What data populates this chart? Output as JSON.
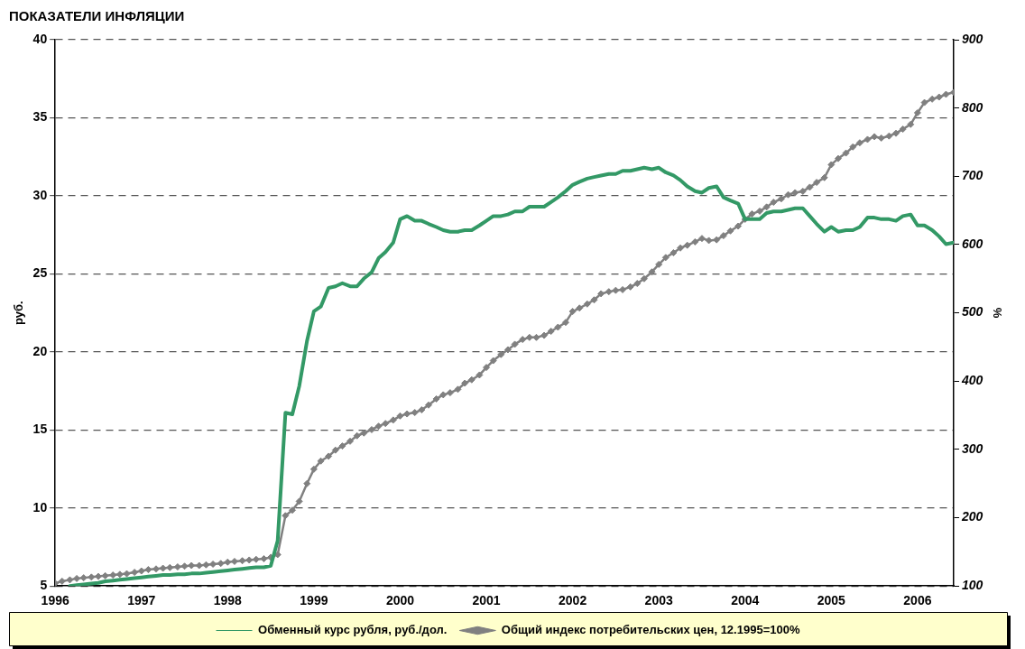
{
  "chart_data": {
    "type": "line",
    "title": "ПОКАЗАТЕЛИ ИНФЛЯЦИИ",
    "ylabel": "руб.",
    "y2label": "%",
    "x": [
      1996.0,
      1996.08,
      1996.17,
      1996.25,
      1996.33,
      1996.42,
      1996.5,
      1996.58,
      1996.67,
      1996.75,
      1996.83,
      1996.92,
      1997.0,
      1997.08,
      1997.17,
      1997.25,
      1997.33,
      1997.42,
      1997.5,
      1997.58,
      1997.67,
      1997.75,
      1997.83,
      1997.92,
      1998.0,
      1998.08,
      1998.17,
      1998.25,
      1998.33,
      1998.42,
      1998.5,
      1998.58,
      1998.67,
      1998.75,
      1998.83,
      1998.92,
      1999.0,
      1999.08,
      1999.17,
      1999.25,
      1999.33,
      1999.42,
      1999.5,
      1999.58,
      1999.67,
      1999.75,
      1999.83,
      1999.92,
      2000.0,
      2000.08,
      2000.17,
      2000.25,
      2000.33,
      2000.42,
      2000.5,
      2000.58,
      2000.67,
      2000.75,
      2000.83,
      2000.92,
      2001.0,
      2001.08,
      2001.17,
      2001.25,
      2001.33,
      2001.42,
      2001.5,
      2001.58,
      2001.67,
      2001.75,
      2001.83,
      2001.92,
      2002.0,
      2002.08,
      2002.17,
      2002.25,
      2002.33,
      2002.42,
      2002.5,
      2002.58,
      2002.67,
      2002.75,
      2002.83,
      2002.92,
      2003.0,
      2003.08,
      2003.17,
      2003.25,
      2003.33,
      2003.42,
      2003.5,
      2003.58,
      2003.67,
      2003.75,
      2003.83,
      2003.92,
      2004.0,
      2004.08,
      2004.17,
      2004.25,
      2004.33,
      2004.42,
      2004.5,
      2004.58,
      2004.67,
      2004.75,
      2004.83,
      2004.92,
      2005.0,
      2005.08,
      2005.17,
      2005.25,
      2005.33,
      2005.42,
      2005.5,
      2005.58,
      2005.67,
      2005.75,
      2005.83,
      2005.92,
      2006.0,
      2006.08,
      2006.17,
      2006.25,
      2006.33,
      2006.42
    ],
    "series": [
      {
        "name": "Обменный курс рубля, руб./дол.",
        "color": "#339966",
        "marker": "none",
        "values": [
          null,
          null,
          5.0,
          5.05,
          5.1,
          5.15,
          5.2,
          5.3,
          5.35,
          5.4,
          5.45,
          5.5,
          5.55,
          5.6,
          5.65,
          5.7,
          5.7,
          5.75,
          5.75,
          5.8,
          5.8,
          5.85,
          5.9,
          5.95,
          6.0,
          6.05,
          6.1,
          6.15,
          6.2,
          6.2,
          6.3,
          7.9,
          16.1,
          16.0,
          17.8,
          20.7,
          22.6,
          22.9,
          24.1,
          24.2,
          24.4,
          24.2,
          24.2,
          24.7,
          25.1,
          26.0,
          26.4,
          27.0,
          28.5,
          28.7,
          28.4,
          28.4,
          28.2,
          28.0,
          27.8,
          27.7,
          27.7,
          27.8,
          27.8,
          28.1,
          28.4,
          28.7,
          28.7,
          28.8,
          29.0,
          29.0,
          29.3,
          29.3,
          29.3,
          29.6,
          29.9,
          30.3,
          30.7,
          30.9,
          31.1,
          31.2,
          31.3,
          31.4,
          31.4,
          31.6,
          31.6,
          31.7,
          31.8,
          31.7,
          31.8,
          31.5,
          31.3,
          31.0,
          30.6,
          30.3,
          30.2,
          30.5,
          30.6,
          29.9,
          29.7,
          29.5,
          28.5,
          28.5,
          28.5,
          28.9,
          29.0,
          29.0,
          29.1,
          29.2,
          29.2,
          28.7,
          28.2,
          27.7,
          28.0,
          27.7,
          27.8,
          27.8,
          28.0,
          28.6,
          28.6,
          28.5,
          28.5,
          28.4,
          28.7,
          28.8,
          28.1,
          28.1,
          27.8,
          27.4,
          26.9,
          27.0
        ]
      },
      {
        "name": "Общий индекс потребительских цен, 12.1995=100%",
        "color": "#808080",
        "marker": "diamond",
        "axis": "y2",
        "values": [
          104,
          107,
          109,
          111,
          112,
          113,
          114,
          115,
          116,
          117,
          118,
          120,
          122,
          124,
          125,
          126,
          127,
          128,
          129,
          130,
          130,
          131,
          132,
          133,
          135,
          136,
          137,
          138,
          139,
          140,
          142,
          146,
          203,
          211,
          224,
          250,
          271,
          283,
          290,
          299,
          305,
          312,
          320,
          324,
          329,
          334,
          338,
          343,
          349,
          352,
          354,
          358,
          365,
          374,
          380,
          383,
          388,
          397,
          402,
          409,
          420,
          430,
          439,
          446,
          454,
          461,
          464,
          464,
          467,
          473,
          479,
          486,
          502,
          507,
          513,
          519,
          528,
          531,
          533,
          534,
          538,
          543,
          550,
          560,
          571,
          581,
          588,
          595,
          599,
          604,
          609,
          606,
          607,
          613,
          620,
          627,
          637,
          645,
          649,
          655,
          662,
          667,
          673,
          676,
          678,
          684,
          691,
          698,
          717,
          726,
          734,
          743,
          749,
          754,
          758,
          756,
          759,
          763,
          769,
          776,
          793,
          808,
          813,
          816,
          820,
          823
        ]
      }
    ],
    "xlim": [
      1996,
      2006.42
    ],
    "xticks": [
      1996,
      1997,
      1998,
      1999,
      2000,
      2001,
      2002,
      2003,
      2004,
      2005,
      2006
    ],
    "ylim": [
      5,
      40
    ],
    "yticks": [
      5,
      10,
      15,
      20,
      25,
      30,
      35,
      40
    ],
    "y2lim": [
      100,
      900
    ],
    "y2ticks": [
      100,
      200,
      300,
      400,
      500,
      600,
      700,
      800,
      900
    ],
    "grid": "y",
    "legend": "bottom"
  }
}
